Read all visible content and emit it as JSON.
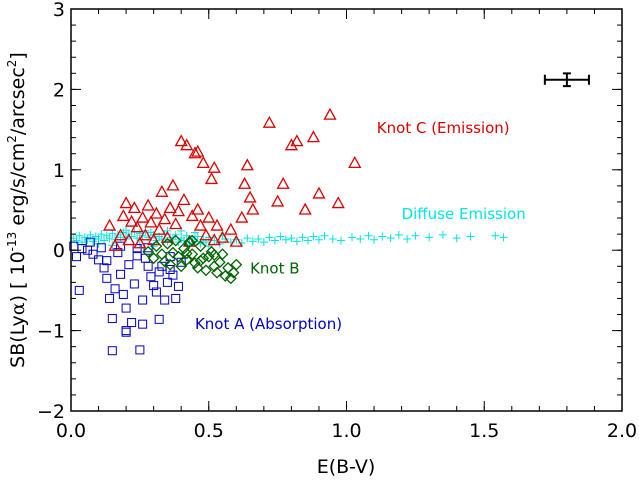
{
  "chart_data": {
    "type": "scatter",
    "xlabel": "E(B-V)",
    "ylabel_parts": {
      "prefix": "SB(Ly",
      "alpha": "α",
      "suffix": ")  [ 10",
      "exp": "-13",
      "units": " erg/s/cm",
      "units_sup": "2",
      "units2": "/arcsec",
      "units2_sup": "2",
      "close": "]"
    },
    "xlim": [
      0.0,
      2.0
    ],
    "ylim": [
      -2,
      3
    ],
    "x_ticks": [
      {
        "value": 0.0,
        "label": "0.0"
      },
      {
        "value": 0.5,
        "label": "0.5"
      },
      {
        "value": 1.0,
        "label": "1.0"
      },
      {
        "value": 1.5,
        "label": "1.5"
      },
      {
        "value": 2.0,
        "label": "2.0"
      }
    ],
    "y_ticks": [
      {
        "value": -2,
        "label": "−2"
      },
      {
        "value": -1,
        "label": "−1"
      },
      {
        "value": 0,
        "label": "0"
      },
      {
        "value": 1,
        "label": "1"
      },
      {
        "value": 2,
        "label": "2"
      },
      {
        "value": 3,
        "label": "3"
      }
    ],
    "error_bar": {
      "x": 1.8,
      "y": 2.12,
      "xerr": 0.08,
      "yerr": 0.08,
      "color": "#000000"
    },
    "annotations": [
      {
        "text": "Knot C (Emission)",
        "x": 1.11,
        "y": 1.46,
        "color": "#dd0000"
      },
      {
        "text": "Diffuse Emission",
        "x": 1.2,
        "y": 0.39,
        "color": "#00e5e5"
      },
      {
        "text": "Knot B",
        "x": 0.65,
        "y": -0.29,
        "color": "#006400"
      },
      {
        "text": "Knot A (Absorption)",
        "x": 0.45,
        "y": -0.98,
        "color": "#0000cc"
      }
    ],
    "series": [
      {
        "name": "Knot A (Absorption)",
        "marker": "square",
        "color": "#0000cc",
        "points": [
          [
            0.01,
            0.05
          ],
          [
            0.02,
            -0.08
          ],
          [
            0.03,
            -0.5
          ],
          [
            0.04,
            0.02
          ],
          [
            0.06,
            0.0
          ],
          [
            0.07,
            0.1
          ],
          [
            0.08,
            -0.05
          ],
          [
            0.1,
            -0.12
          ],
          [
            0.11,
            0.03
          ],
          [
            0.12,
            -0.22
          ],
          [
            0.13,
            -0.35
          ],
          [
            0.14,
            -0.6
          ],
          [
            0.15,
            -0.85
          ],
          [
            0.16,
            -0.48
          ],
          [
            0.17,
            -0.03
          ],
          [
            0.18,
            -0.3
          ],
          [
            0.19,
            -0.55
          ],
          [
            0.2,
            -0.72
          ],
          [
            0.2,
            -1.02
          ],
          [
            0.21,
            -0.18
          ],
          [
            0.22,
            -0.9
          ],
          [
            0.23,
            -0.42
          ],
          [
            0.24,
            0.02
          ],
          [
            0.25,
            -1.24
          ],
          [
            0.26,
            -0.62
          ],
          [
            0.27,
            -0.1
          ],
          [
            0.28,
            -0.2
          ],
          [
            0.29,
            -0.33
          ],
          [
            0.3,
            -0.44
          ],
          [
            0.31,
            -0.52
          ],
          [
            0.32,
            -0.86
          ],
          [
            0.33,
            -0.2
          ],
          [
            0.34,
            -0.62
          ],
          [
            0.35,
            -0.4
          ],
          [
            0.36,
            -0.24
          ],
          [
            0.37,
            -0.31
          ],
          [
            0.38,
            -0.6
          ],
          [
            0.39,
            -0.45
          ],
          [
            0.4,
            -0.15
          ],
          [
            0.15,
            -1.25
          ],
          [
            0.2,
            -1.0
          ],
          [
            0.26,
            -0.92
          ],
          [
            0.13,
            -0.13
          ],
          [
            0.18,
            0.05
          ],
          [
            0.24,
            -0.07
          ],
          [
            0.28,
            0.03
          ],
          [
            0.32,
            -0.27
          ],
          [
            0.36,
            -0.08
          ]
        ]
      },
      {
        "name": "Knot B",
        "marker": "diamond",
        "color": "#006400",
        "points": [
          [
            0.28,
            -0.02
          ],
          [
            0.3,
            -0.1
          ],
          [
            0.31,
            0.05
          ],
          [
            0.33,
            -0.05
          ],
          [
            0.34,
            -0.14
          ],
          [
            0.35,
            0.08
          ],
          [
            0.36,
            -0.18
          ],
          [
            0.37,
            -0.03
          ],
          [
            0.38,
            0.12
          ],
          [
            0.39,
            -0.08
          ],
          [
            0.4,
            -0.2
          ],
          [
            0.41,
            0.02
          ],
          [
            0.42,
            -0.12
          ],
          [
            0.43,
            0.1
          ],
          [
            0.44,
            -0.05
          ],
          [
            0.45,
            -0.16
          ],
          [
            0.46,
            -0.22
          ],
          [
            0.47,
            0.05
          ],
          [
            0.48,
            -0.1
          ],
          [
            0.49,
            -0.25
          ],
          [
            0.5,
            -0.08
          ],
          [
            0.51,
            -0.02
          ],
          [
            0.52,
            -0.2
          ],
          [
            0.53,
            -0.28
          ],
          [
            0.54,
            -0.15
          ],
          [
            0.55,
            -0.05
          ],
          [
            0.56,
            -0.32
          ],
          [
            0.57,
            -0.22
          ],
          [
            0.58,
            -0.35
          ],
          [
            0.59,
            -0.28
          ],
          [
            0.6,
            -0.18
          ],
          [
            0.44,
            0.12
          ],
          [
            0.42,
            -0.04
          ],
          [
            0.47,
            -0.13
          ],
          [
            0.52,
            -0.06
          ]
        ]
      },
      {
        "name": "Knot C (Emission)",
        "marker": "triangle",
        "color": "#dd0000",
        "points": [
          [
            0.14,
            0.3
          ],
          [
            0.16,
            0.05
          ],
          [
            0.18,
            0.18
          ],
          [
            0.19,
            0.42
          ],
          [
            0.2,
            0.58
          ],
          [
            0.21,
            0.12
          ],
          [
            0.22,
            0.35
          ],
          [
            0.23,
            0.52
          ],
          [
            0.24,
            0.28
          ],
          [
            0.25,
            0.08
          ],
          [
            0.26,
            0.4
          ],
          [
            0.27,
            0.18
          ],
          [
            0.28,
            0.55
          ],
          [
            0.29,
            0.34
          ],
          [
            0.3,
            0.12
          ],
          [
            0.31,
            0.45
          ],
          [
            0.32,
            0.25
          ],
          [
            0.33,
            0.72
          ],
          [
            0.34,
            0.38
          ],
          [
            0.35,
            0.15
          ],
          [
            0.36,
            0.52
          ],
          [
            0.37,
            0.8
          ],
          [
            0.38,
            0.32
          ],
          [
            0.39,
            0.48
          ],
          [
            0.4,
            1.35
          ],
          [
            0.41,
            0.62
          ],
          [
            0.42,
            1.3
          ],
          [
            0.43,
            0.1
          ],
          [
            0.44,
            0.42
          ],
          [
            0.45,
            1.2
          ],
          [
            0.46,
            0.5
          ],
          [
            0.47,
            0.3
          ],
          [
            0.48,
            1.08
          ],
          [
            0.49,
            0.18
          ],
          [
            0.5,
            0.4
          ],
          [
            0.51,
            0.88
          ],
          [
            0.52,
            0.12
          ],
          [
            0.53,
            0.3
          ],
          [
            0.55,
            0.15
          ],
          [
            0.58,
            0.25
          ],
          [
            0.6,
            0.1
          ],
          [
            0.62,
            0.4
          ],
          [
            0.63,
            0.82
          ],
          [
            0.64,
            1.05
          ],
          [
            0.65,
            0.65
          ],
          [
            0.66,
            0.5
          ],
          [
            0.72,
            1.58
          ],
          [
            0.75,
            0.6
          ],
          [
            0.77,
            0.82
          ],
          [
            0.8,
            1.3
          ],
          [
            0.82,
            1.35
          ],
          [
            0.85,
            0.5
          ],
          [
            0.88,
            1.4
          ],
          [
            0.9,
            0.7
          ],
          [
            0.94,
            1.68
          ],
          [
            0.97,
            0.58
          ],
          [
            1.03,
            1.08
          ],
          [
            0.46,
            1.22
          ],
          [
            0.52,
            1.02
          ]
        ]
      },
      {
        "name": "Diffuse Emission",
        "marker": "plus",
        "color": "#00e5e5",
        "points": [
          [
            0.01,
            0.15
          ],
          [
            0.02,
            0.12
          ],
          [
            0.03,
            0.18
          ],
          [
            0.04,
            0.1
          ],
          [
            0.05,
            0.16
          ],
          [
            0.06,
            0.13
          ],
          [
            0.07,
            0.19
          ],
          [
            0.08,
            0.11
          ],
          [
            0.09,
            0.17
          ],
          [
            0.1,
            0.14
          ],
          [
            0.11,
            0.2
          ],
          [
            0.12,
            0.12
          ],
          [
            0.13,
            0.18
          ],
          [
            0.14,
            0.15
          ],
          [
            0.15,
            0.21
          ],
          [
            0.16,
            0.13
          ],
          [
            0.17,
            0.19
          ],
          [
            0.18,
            0.16
          ],
          [
            0.19,
            0.22
          ],
          [
            0.2,
            0.14
          ],
          [
            0.21,
            0.2
          ],
          [
            0.22,
            0.17
          ],
          [
            0.23,
            0.23
          ],
          [
            0.24,
            0.15
          ],
          [
            0.25,
            0.21
          ],
          [
            0.26,
            0.18
          ],
          [
            0.27,
            0.24
          ],
          [
            0.28,
            0.16
          ],
          [
            0.29,
            0.22
          ],
          [
            0.3,
            0.19
          ],
          [
            0.31,
            0.12
          ],
          [
            0.32,
            0.17
          ],
          [
            0.33,
            0.14
          ],
          [
            0.34,
            0.2
          ],
          [
            0.35,
            0.11
          ],
          [
            0.36,
            0.16
          ],
          [
            0.37,
            0.13
          ],
          [
            0.38,
            0.19
          ],
          [
            0.39,
            0.1
          ],
          [
            0.4,
            0.15
          ],
          [
            0.41,
            0.12
          ],
          [
            0.42,
            0.18
          ],
          [
            0.43,
            0.09
          ],
          [
            0.44,
            0.14
          ],
          [
            0.45,
            0.11
          ],
          [
            0.46,
            0.17
          ],
          [
            0.47,
            0.08
          ],
          [
            0.48,
            0.13
          ],
          [
            0.49,
            0.1
          ],
          [
            0.5,
            0.16
          ],
          [
            0.52,
            0.12
          ],
          [
            0.54,
            0.08
          ],
          [
            0.56,
            0.14
          ],
          [
            0.58,
            0.1
          ],
          [
            0.6,
            0.13
          ],
          [
            0.62,
            0.09
          ],
          [
            0.64,
            0.15
          ],
          [
            0.66,
            0.11
          ],
          [
            0.68,
            0.14
          ],
          [
            0.7,
            0.1
          ],
          [
            0.72,
            0.16
          ],
          [
            0.74,
            0.12
          ],
          [
            0.76,
            0.17
          ],
          [
            0.78,
            0.13
          ],
          [
            0.8,
            0.15
          ],
          [
            0.82,
            0.11
          ],
          [
            0.84,
            0.16
          ],
          [
            0.86,
            0.12
          ],
          [
            0.88,
            0.17
          ],
          [
            0.9,
            0.13
          ],
          [
            0.92,
            0.18
          ],
          [
            0.95,
            0.14
          ],
          [
            0.98,
            0.12
          ],
          [
            1.02,
            0.16
          ],
          [
            1.05,
            0.14
          ],
          [
            1.08,
            0.18
          ],
          [
            1.1,
            0.13
          ],
          [
            1.13,
            0.17
          ],
          [
            1.16,
            0.15
          ],
          [
            1.19,
            0.19
          ],
          [
            1.22,
            0.14
          ],
          [
            1.25,
            0.18
          ],
          [
            1.3,
            0.16
          ],
          [
            1.35,
            0.19
          ],
          [
            1.4,
            0.15
          ],
          [
            1.45,
            0.17
          ],
          [
            1.54,
            0.18
          ],
          [
            1.57,
            0.16
          ],
          [
            0.1,
            0.08
          ],
          [
            0.2,
            0.25
          ],
          [
            0.3,
            0.05
          ],
          [
            0.4,
            0.24
          ],
          [
            0.5,
            0.05
          ],
          [
            0.15,
            0.06
          ],
          [
            0.25,
            0.07
          ],
          [
            0.35,
            0.24
          ],
          [
            0.45,
            0.22
          ],
          [
            0.55,
            0.18
          ]
        ]
      }
    ]
  }
}
